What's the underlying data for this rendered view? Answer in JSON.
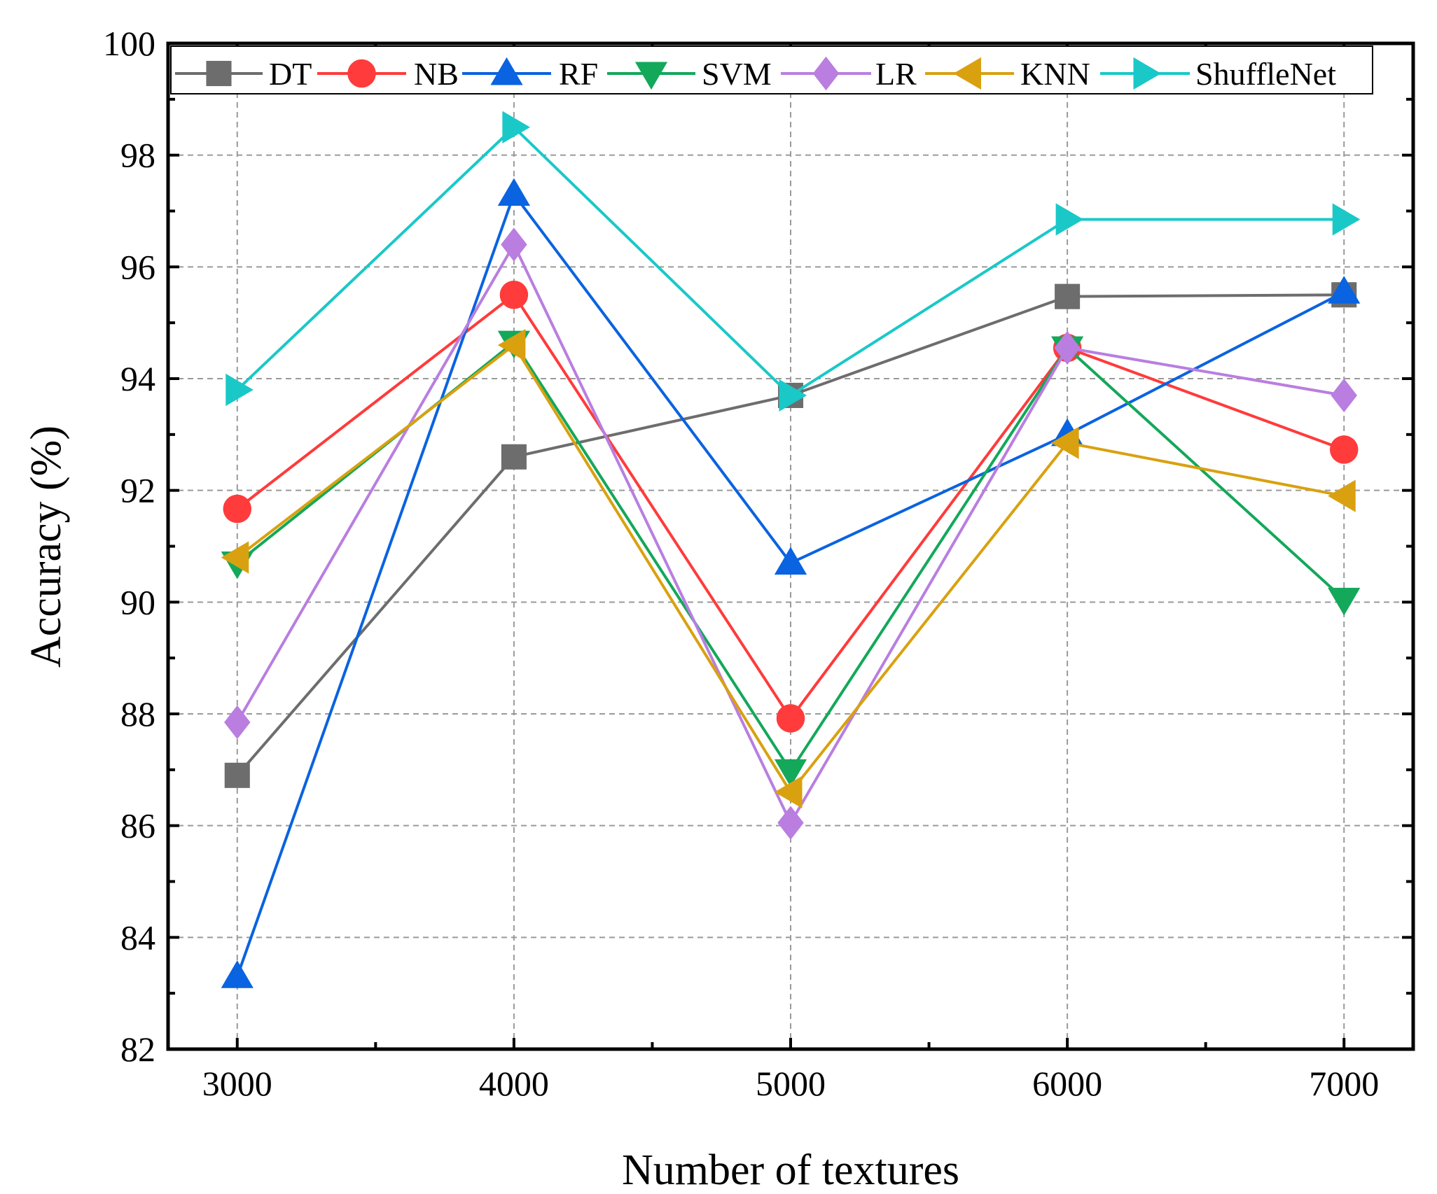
{
  "chart_data": {
    "type": "line",
    "xlabel": "Number of textures",
    "ylabel": "Accuracy (%)",
    "xlim": [
      2750,
      7250
    ],
    "ylim": [
      82,
      100
    ],
    "xticks": [
      3000,
      4000,
      5000,
      6000,
      7000
    ],
    "yticks": [
      82,
      84,
      86,
      88,
      90,
      92,
      94,
      96,
      98,
      100
    ],
    "grid": true,
    "legend_position": "top",
    "x": [
      3000,
      4000,
      5000,
      6000,
      7000
    ],
    "series": [
      {
        "name": "DT",
        "color": "#6d6d6d",
        "marker": "square",
        "values": [
          86.9,
          92.6,
          93.7,
          95.47,
          95.5
        ]
      },
      {
        "name": "NB",
        "color": "#ff3b3b",
        "marker": "circle",
        "values": [
          91.67,
          95.5,
          87.92,
          94.55,
          92.73
        ]
      },
      {
        "name": "RF",
        "color": "#0a63e0",
        "marker": "triangle-up",
        "values": [
          83.3,
          97.3,
          90.7,
          93.0,
          95.55
        ]
      },
      {
        "name": "SVM",
        "color": "#13a85a",
        "marker": "triangle-down",
        "values": [
          90.7,
          94.65,
          86.98,
          94.55,
          90.05
        ]
      },
      {
        "name": "LR",
        "color": "#b97ee0",
        "marker": "diamond",
        "values": [
          87.85,
          96.4,
          86.05,
          94.55,
          93.7
        ]
      },
      {
        "name": "KNN",
        "color": "#d9a10f",
        "marker": "triangle-left",
        "values": [
          90.8,
          94.6,
          86.6,
          92.85,
          91.9
        ]
      },
      {
        "name": "ShuffleNet",
        "color": "#1ac8c8",
        "marker": "triangle-right",
        "values": [
          93.8,
          98.5,
          93.7,
          96.85,
          96.85
        ]
      }
    ]
  }
}
